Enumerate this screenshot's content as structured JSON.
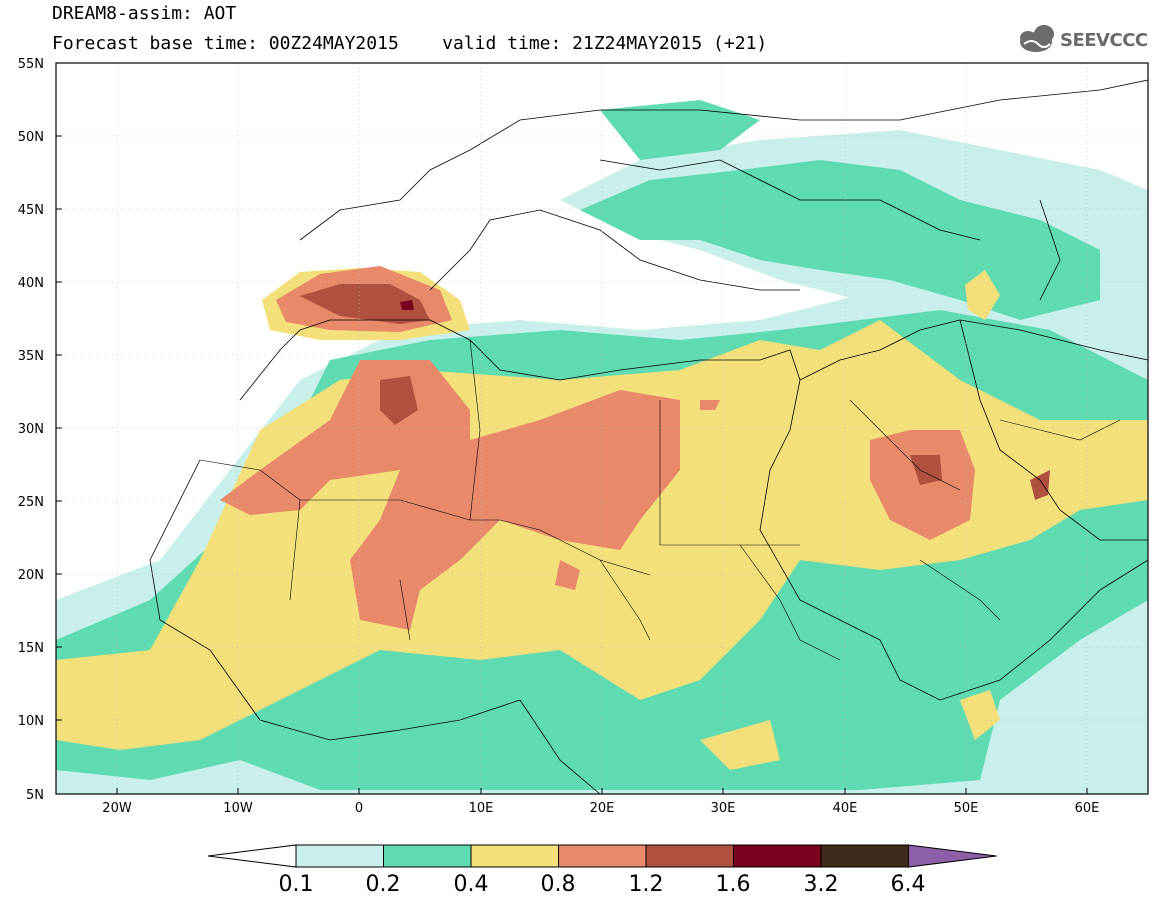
{
  "title": {
    "line1": "DREAM8-assim: AOT",
    "line2": "Forecast base time: 00Z24MAY2015    valid time: 21Z24MAY2015 (+21)"
  },
  "logo": {
    "text": "SEEVCCC",
    "icon": "cloud-icon"
  },
  "map": {
    "lon_range": [
      -25,
      65
    ],
    "lat_range": [
      5,
      55
    ],
    "lat_ticks": [
      "55N",
      "50N",
      "45N",
      "40N",
      "35N",
      "30N",
      "25N",
      "20N",
      "15N",
      "10N",
      "5N"
    ],
    "lon_ticks": [
      "20W",
      "10W",
      "0",
      "10E",
      "20E",
      "30E",
      "40E",
      "50E",
      "60E"
    ]
  },
  "colorbar": {
    "labels": [
      "0.1",
      "0.2",
      "0.4",
      "0.8",
      "1.2",
      "1.6",
      "3.2",
      "6.4"
    ],
    "colors": [
      "#ffffff",
      "#c8efe9",
      "#5fdbb2",
      "#f4e07a",
      "#e8896a",
      "#b0503f",
      "#7a0020",
      "#3d2a1a",
      "#8d5fa8"
    ]
  }
}
